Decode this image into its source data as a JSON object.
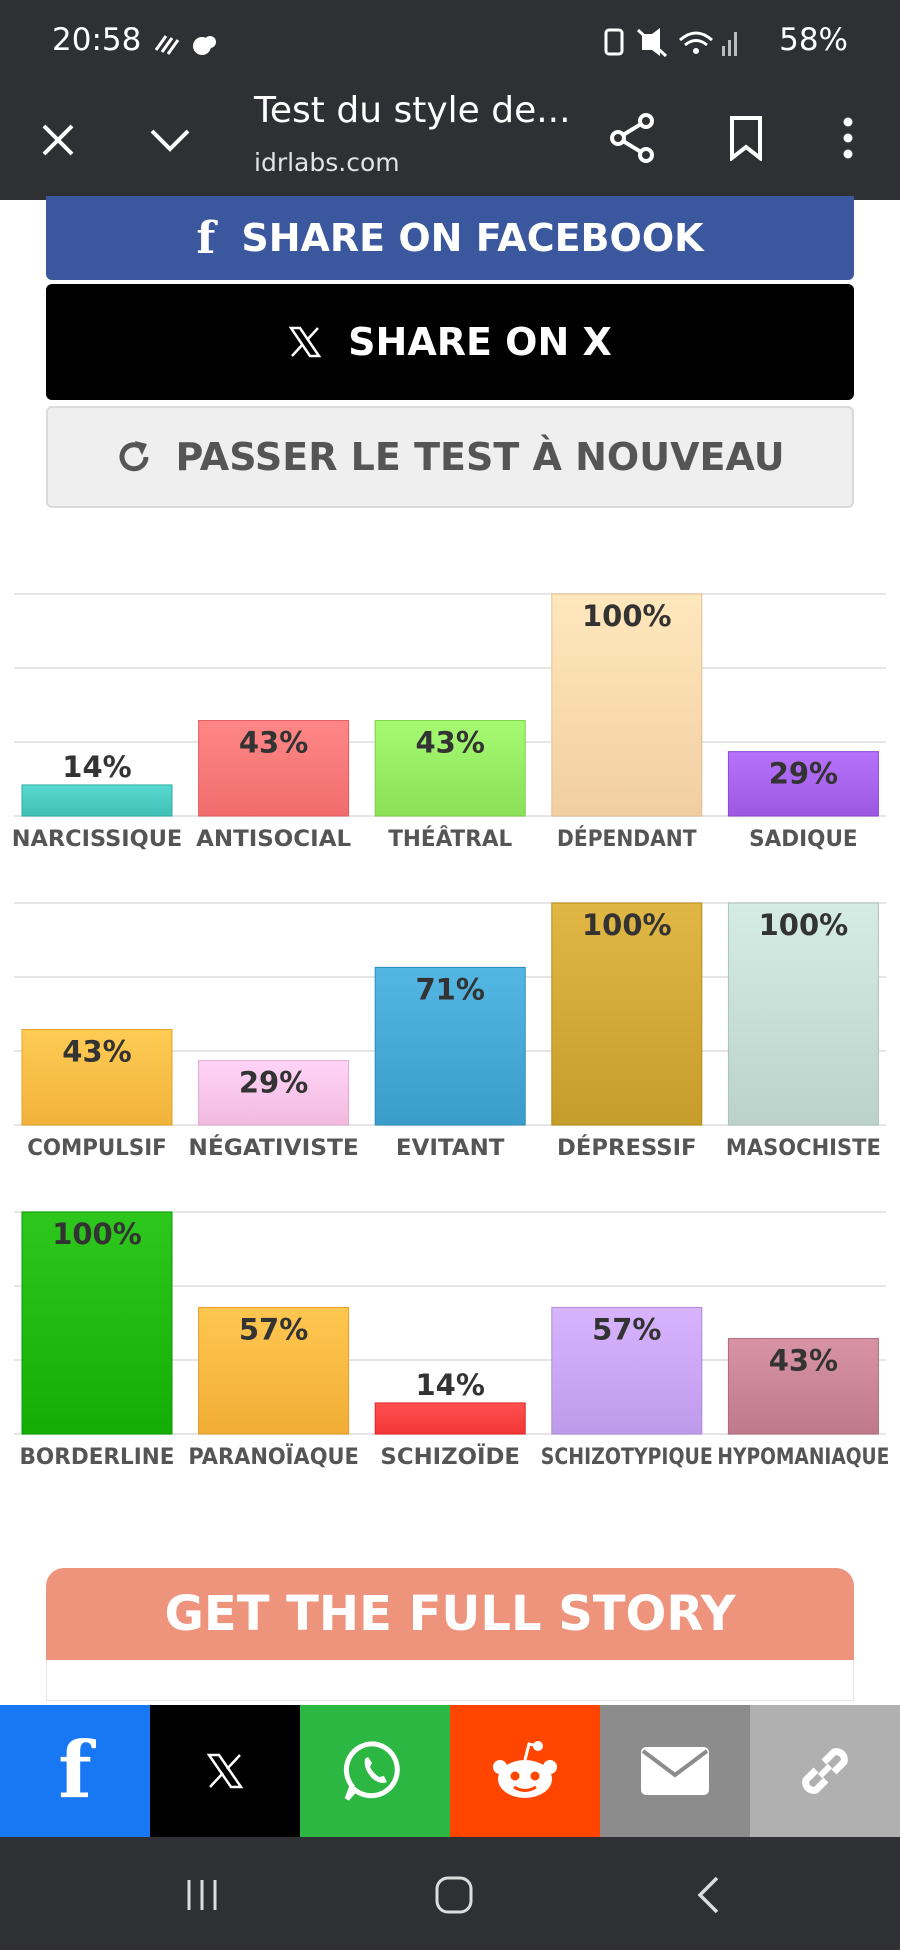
{
  "status_bar": {
    "time": "20:58",
    "battery": "58%"
  },
  "browser": {
    "page_title": "Test du style de...",
    "domain": "idrlabs.com"
  },
  "buttons": {
    "facebook": "SHARE ON FACEBOOK",
    "x": "SHARE ON X",
    "retake": "PASSER LE TEST À NOUVEAU"
  },
  "chart_data": [
    {
      "type": "bar",
      "categories": [
        "NARCISSIQUE",
        "ANTISOCIAL",
        "THÉÂTRAL",
        "DÉPENDANT",
        "SADIQUE"
      ],
      "values": [
        14,
        43,
        43,
        100,
        29
      ],
      "labels": [
        "14%",
        "43%",
        "43%",
        "100%",
        "29%"
      ],
      "colors": [
        "#4ecdc4",
        "#ff7b7b",
        "#99ee66",
        "#ffdcb0",
        "#aa66ee"
      ],
      "ylim": [
        0,
        100
      ],
      "grid": true
    },
    {
      "type": "bar",
      "categories": [
        "COMPULSIF",
        "NÉGATIVISTE",
        "EVITANT",
        "DÉPRESSIF",
        "MASOCHISTE"
      ],
      "values": [
        43,
        29,
        71,
        100,
        100
      ],
      "labels": [
        "43%",
        "29%",
        "71%",
        "100%",
        "100%"
      ],
      "colors": [
        "#ffc048",
        "#ffc8ec",
        "#48aad6",
        "#d4ab38",
        "#c9e0d8"
      ],
      "ylim": [
        0,
        100
      ],
      "grid": true
    },
    {
      "type": "bar",
      "categories": [
        "BORDERLINE",
        "PARANOÏAQUE",
        "SCHIZOÏDE",
        "SCHIZOTYPIQUE",
        "HYPOMANIAQUE"
      ],
      "values": [
        100,
        57,
        14,
        57,
        43
      ],
      "labels": [
        "100%",
        "57%",
        "14%",
        "57%",
        "43%"
      ],
      "colors": [
        "#22bb11",
        "#ffbb44",
        "#ff4444",
        "#cca8f8",
        "#cc8899"
      ],
      "ylim": [
        0,
        100
      ],
      "grid": true
    }
  ],
  "story": {
    "title": "GET THE FULL STORY"
  },
  "share_bar": {
    "items": [
      {
        "name": "facebook",
        "color": "#1877f2"
      },
      {
        "name": "x",
        "color": "#000000"
      },
      {
        "name": "whatsapp",
        "color": "#2cb742"
      },
      {
        "name": "reddit",
        "color": "#ff4500"
      },
      {
        "name": "email",
        "color": "#8c8c8c"
      },
      {
        "name": "link",
        "color": "#b0b0b0"
      }
    ]
  }
}
